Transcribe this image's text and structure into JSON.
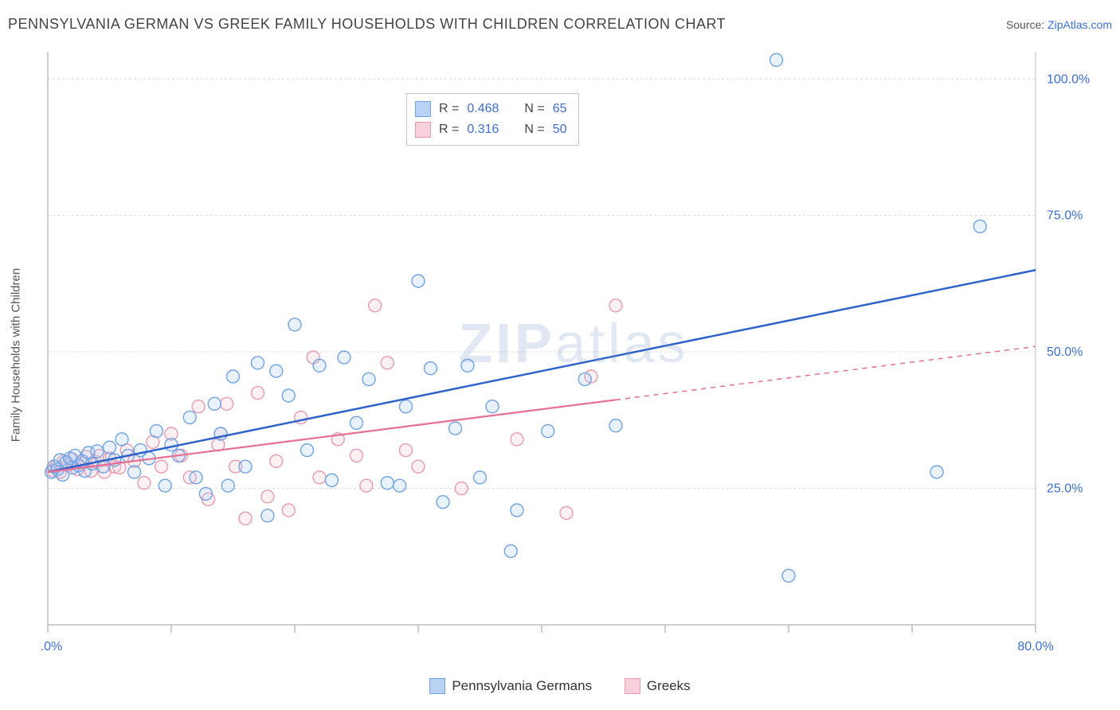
{
  "title": "PENNSYLVANIA GERMAN VS GREEK FAMILY HOUSEHOLDS WITH CHILDREN CORRELATION CHART",
  "source_label": "Source: ",
  "source_site": "ZipAtlas.com",
  "ylabel": "Family Households with Children",
  "watermark_a": "ZIP",
  "watermark_b": "atlas",
  "chart": {
    "type": "scatter",
    "xlim": [
      0,
      80
    ],
    "ylim": [
      0,
      105
    ],
    "x_ticks": [
      0,
      10,
      20,
      30,
      40,
      50,
      60,
      70,
      80
    ],
    "x_ticklabels_shown": {
      "0": "0.0%",
      "80": "80.0%"
    },
    "y_gridlines": [
      25,
      50,
      75,
      100
    ],
    "y_ticklabels": {
      "25": "25.0%",
      "50": "50.0%",
      "75": "75.0%",
      "100": "100.0%"
    },
    "background_color": "#ffffff",
    "grid_color": "#dcdcdc",
    "grid_dash": "3,3",
    "axis_color": "#bdbdbd",
    "marker_radius": 8,
    "marker_stroke_width": 1.4,
    "marker_fill_opacity": 0.25,
    "series": [
      {
        "key": "pa_german",
        "label": "Pennsylvania Germans",
        "color_stroke": "#6fa3e6",
        "color_fill": "#a8c7ef",
        "swatch_border": "#6fa3e6",
        "swatch_fill": "#b9d2f3",
        "R": "0.468",
        "N": "65",
        "trend": {
          "x1": 0,
          "y1": 28,
          "x2": 80,
          "y2": 65,
          "solid_until_x": 80,
          "width": 2.5,
          "color": "#2f63c9"
        },
        "points": [
          [
            0.3,
            28
          ],
          [
            0.5,
            29
          ],
          [
            0.8,
            28.5
          ],
          [
            1.0,
            30.2
          ],
          [
            1.2,
            27.5
          ],
          [
            1.5,
            29.8
          ],
          [
            1.8,
            30.5
          ],
          [
            2.0,
            28.8
          ],
          [
            2.2,
            31.0
          ],
          [
            2.5,
            29.2
          ],
          [
            2.8,
            30.0
          ],
          [
            3.0,
            28.2
          ],
          [
            3.3,
            31.5
          ],
          [
            3.6,
            29.5
          ],
          [
            4.0,
            31.8
          ],
          [
            4.5,
            29.0
          ],
          [
            5.0,
            32.5
          ],
          [
            5.4,
            30.2
          ],
          [
            6.0,
            34.0
          ],
          [
            6.5,
            31.0
          ],
          [
            7.0,
            28.0
          ],
          [
            7.5,
            32.0
          ],
          [
            8.2,
            30.5
          ],
          [
            8.8,
            35.5
          ],
          [
            9.5,
            25.5
          ],
          [
            10.0,
            33.0
          ],
          [
            10.6,
            31.0
          ],
          [
            11.5,
            38.0
          ],
          [
            12.0,
            27.0
          ],
          [
            12.8,
            24.0
          ],
          [
            13.5,
            40.5
          ],
          [
            14.0,
            35.0
          ],
          [
            14.6,
            25.5
          ],
          [
            15.0,
            45.5
          ],
          [
            16.0,
            29.0
          ],
          [
            17.0,
            48.0
          ],
          [
            17.8,
            20.0
          ],
          [
            18.5,
            46.5
          ],
          [
            19.5,
            42.0
          ],
          [
            20.0,
            55.0
          ],
          [
            21.0,
            32.0
          ],
          [
            22.0,
            47.5
          ],
          [
            23.0,
            26.5
          ],
          [
            24.0,
            49.0
          ],
          [
            25.0,
            37.0
          ],
          [
            26.0,
            45.0
          ],
          [
            27.5,
            26.0
          ],
          [
            28.5,
            25.5
          ],
          [
            29.0,
            40.0
          ],
          [
            30.0,
            63.0
          ],
          [
            31.0,
            47.0
          ],
          [
            32.0,
            22.5
          ],
          [
            33.0,
            36.0
          ],
          [
            34.0,
            47.5
          ],
          [
            35.0,
            27.0
          ],
          [
            36.0,
            40.0
          ],
          [
            37.5,
            13.5
          ],
          [
            38.0,
            21.0
          ],
          [
            40.5,
            35.5
          ],
          [
            43.5,
            45.0
          ],
          [
            46.0,
            36.5
          ],
          [
            59.0,
            103.5
          ],
          [
            60.0,
            9.0
          ],
          [
            72.0,
            28.0
          ],
          [
            75.5,
            73.0
          ]
        ]
      },
      {
        "key": "greek",
        "label": "Greeks",
        "color_stroke": "#e89bb0",
        "color_fill": "#f4c2d0",
        "swatch_border": "#e89bb0",
        "swatch_fill": "#f7d0dc",
        "R": "0.316",
        "N": "50",
        "trend": {
          "x1": 0,
          "y1": 28,
          "x2": 80,
          "y2": 51,
          "solid_until_x": 46,
          "width": 2.2,
          "color": "#e66f93"
        },
        "points": [
          [
            0.4,
            28.3
          ],
          [
            0.7,
            29.0
          ],
          [
            1.0,
            28.0
          ],
          [
            1.3,
            30.0
          ],
          [
            1.6,
            29.2
          ],
          [
            2.0,
            30.3
          ],
          [
            2.4,
            28.5
          ],
          [
            2.8,
            29.6
          ],
          [
            3.1,
            30.8
          ],
          [
            3.5,
            28.2
          ],
          [
            3.8,
            29.9
          ],
          [
            4.2,
            31.0
          ],
          [
            4.6,
            28.0
          ],
          [
            5.0,
            30.5
          ],
          [
            5.4,
            29.0
          ],
          [
            5.8,
            28.8
          ],
          [
            6.4,
            32.0
          ],
          [
            7.0,
            30.0
          ],
          [
            7.8,
            26.0
          ],
          [
            8.5,
            33.5
          ],
          [
            9.2,
            29.0
          ],
          [
            10.0,
            35.0
          ],
          [
            10.8,
            31.0
          ],
          [
            11.5,
            27.0
          ],
          [
            12.2,
            40.0
          ],
          [
            13.0,
            23.0
          ],
          [
            13.8,
            33.0
          ],
          [
            14.5,
            40.5
          ],
          [
            15.2,
            29.0
          ],
          [
            16.0,
            19.5
          ],
          [
            17.0,
            42.5
          ],
          [
            17.8,
            23.5
          ],
          [
            18.5,
            30.0
          ],
          [
            19.5,
            21.0
          ],
          [
            20.5,
            38.0
          ],
          [
            21.5,
            49.0
          ],
          [
            22.0,
            27.0
          ],
          [
            23.5,
            34.0
          ],
          [
            25.0,
            31.0
          ],
          [
            25.8,
            25.5
          ],
          [
            26.5,
            58.5
          ],
          [
            27.5,
            48.0
          ],
          [
            29.0,
            32.0
          ],
          [
            30.0,
            29.0
          ],
          [
            33.5,
            25.0
          ],
          [
            38.0,
            34.0
          ],
          [
            42.0,
            20.5
          ],
          [
            44.0,
            45.5
          ],
          [
            46.0,
            58.5
          ],
          [
            14.0,
            35.0
          ]
        ]
      }
    ]
  },
  "stats_legend": {
    "r_label": "R =",
    "n_label": "N ="
  }
}
